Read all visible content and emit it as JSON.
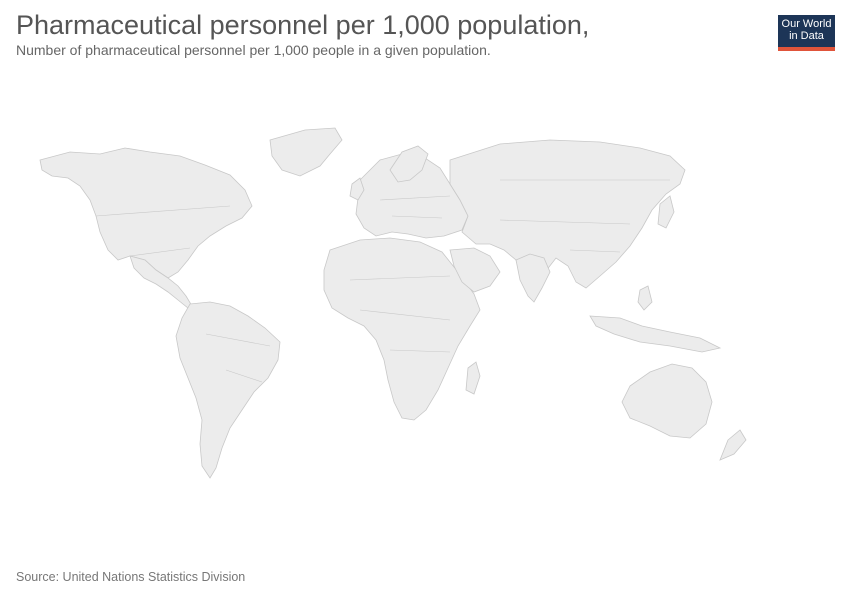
{
  "header": {
    "title": "Pharmaceutical personnel per 1,000 population,",
    "subtitle": "Number of pharmaceutical personnel per 1,000 people in a given population."
  },
  "logo": {
    "line1": "Our World",
    "line2": "in Data",
    "bg_color": "#1d3557",
    "accent_color": "#e0543a"
  },
  "map": {
    "fill_color": "#ececec",
    "border_color": "#c8c8c8",
    "data_state": "no data shown"
  },
  "footer": {
    "source": "Source: United Nations Statistics Division"
  }
}
